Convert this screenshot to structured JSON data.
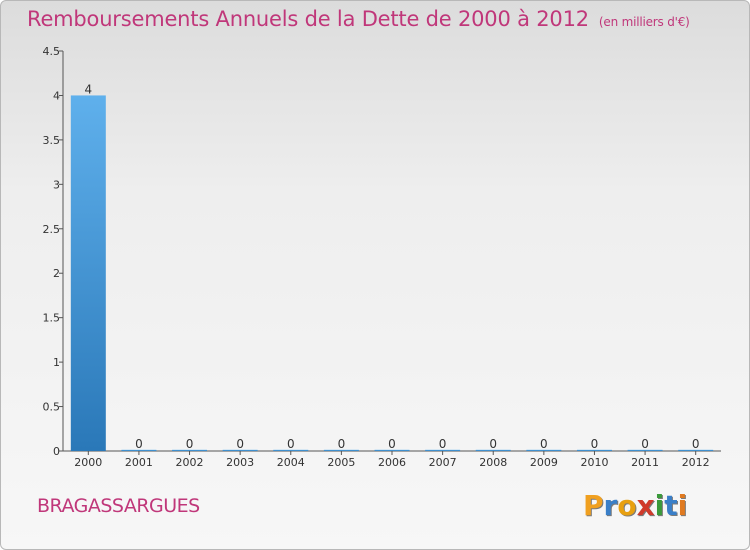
{
  "header": {
    "title": "Remboursements Annuels de la Dette de 2000 à 2012",
    "unit": "(en milliers d'€)"
  },
  "footer": {
    "commune": "BRAGASSARGUES",
    "logo": [
      "P",
      "r",
      "o",
      "x",
      "i",
      "t",
      "i"
    ]
  },
  "colors": {
    "title": "#c0377a",
    "bar_top": "#5fb0ec",
    "bar_bottom": "#2a78b8"
  },
  "chart_data": {
    "type": "bar",
    "title": "Remboursements Annuels de la Dette de 2000 à 2012",
    "xlabel": "",
    "ylabel": "en milliers d'€",
    "categories": [
      "2000",
      "2001",
      "2002",
      "2003",
      "2004",
      "2005",
      "2006",
      "2007",
      "2008",
      "2009",
      "2010",
      "2011",
      "2012"
    ],
    "values": [
      4,
      0,
      0,
      0,
      0,
      0,
      0,
      0,
      0,
      0,
      0,
      0,
      0
    ],
    "value_labels": [
      "4",
      "0",
      "0",
      "0",
      "0",
      "0",
      "0",
      "0",
      "0",
      "0",
      "0",
      "0",
      "0"
    ],
    "ylim": [
      0,
      4.5
    ],
    "yticks": [
      0,
      0.5,
      1,
      1.5,
      2,
      2.5,
      3,
      3.5,
      4,
      4.5
    ],
    "ytick_labels": [
      "0",
      "0.5",
      "1",
      "1.5",
      "2",
      "2.5",
      "3",
      "3.5",
      "4",
      "4.5"
    ],
    "grid": false
  }
}
